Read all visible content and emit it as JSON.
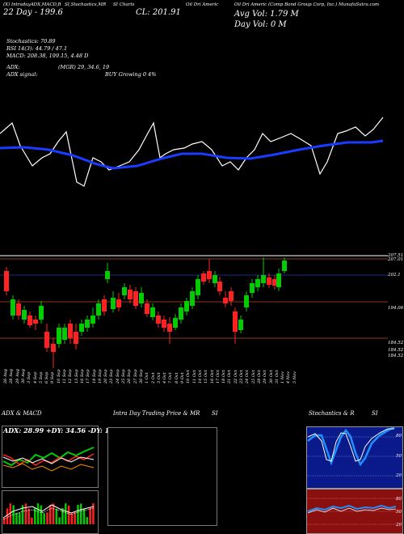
{
  "header": {
    "line1_a": "(X) Intraday",
    "line1_b": "ADX,MACD,R",
    "line1_c": "SI,Stochastics,MR",
    "line1_d": "SI Charts",
    "line1_e": "Oil Dri Americ",
    "line1_f": "(ODC) Oil Dri Americ",
    "line2": "22 Day - 199.6",
    "close": "CL: 201.91",
    "avg_vol": "Avg Vol: 1.79 M",
    "day_vol": "Day Vol: 0 M",
    "right_title": "Oil Dri Americ (Comp Bond Group Corp, Inc.) MunafaSutra.com"
  },
  "indicators": {
    "stochastics": "Stochastics: 70.89",
    "rsi": "RSI 14(3): 44.79 / 47.1",
    "macd": "MACD: 208.38, 199.15, 4.48 D",
    "adx": "ADX:",
    "adx_val": "(MGR) 29, 34.6, 19",
    "adx_signal": "ADX signal:",
    "buy": "BUY Growing 0 4%"
  },
  "price_levels": [
    "207.51",
    "207.01",
    "202.1",
    "194.06",
    "184.52",
    "184.52",
    "184.52"
  ],
  "dates": [
    "26 Aug",
    "28 Aug",
    "29 Aug",
    "30 Aug",
    "3 Sep",
    "4 Sep",
    "5 Sep",
    "6 Sep",
    "9 Sep",
    "10 Sep",
    "11 Sep",
    "12 Sep",
    "13 Sep",
    "16 Sep",
    "17 Sep",
    "18 Sep",
    "19 Sep",
    "20 Sep",
    "23 Sep",
    "24 Sep",
    "25 Sep",
    "26 Sep",
    "27 Sep",
    "30 Sep",
    "1 Oct",
    "2 Oct",
    "3 Oct",
    "4 Oct",
    "7 Oct",
    "8 Oct",
    "9 Oct",
    "10 Oct",
    "11 Oct",
    "14 Oct",
    "15 Oct",
    "16 Oct",
    "17 Oct",
    "18 Oct",
    "21 Oct",
    "22 Oct",
    "23 Oct",
    "24 Oct",
    "25 Oct",
    "28 Oct",
    "29 Oct",
    "30 Oct",
    "31 Oct",
    "1 Nov",
    "4 Nov",
    "5 Nov"
  ],
  "panels": {
    "adx_title": "ADX  & MACD",
    "adx_readout": "ADX: 28.99  +DY: 34.56  -DY: 19.08",
    "intraday_title": "Intra  Day Trading Price  & MR",
    "intraday_title_b": "SI",
    "stoch_title": "Stochastics & R",
    "stoch_title_b": "SI",
    "stoch_levels": [
      "80",
      "50",
      "20"
    ],
    "rsi_levels": [
      "80",
      "50",
      "20"
    ]
  },
  "colors": {
    "up": "#00cc00",
    "down": "#ff2222",
    "ma": "#1a3cff",
    "price_line": "#ffffff",
    "level": "#8b3a1a",
    "stoch_bg": "#0a1a8a",
    "rsi_bg": "#8a1010"
  }
}
